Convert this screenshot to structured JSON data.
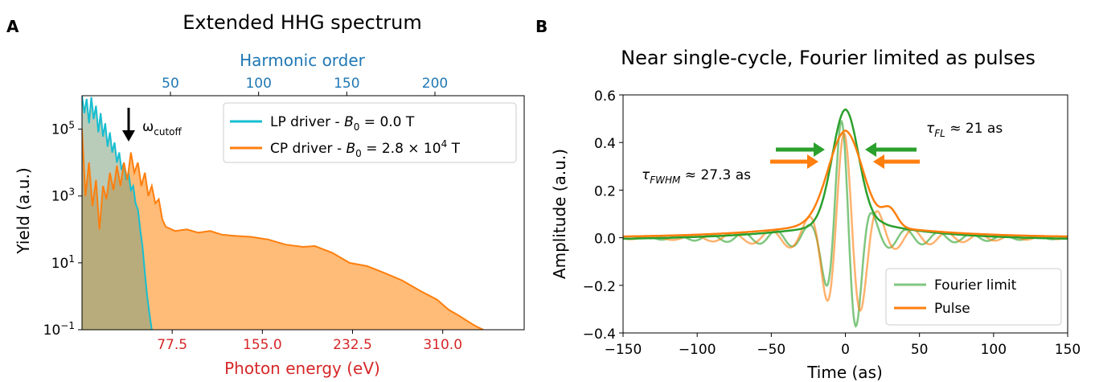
{
  "panel_a_label": "A",
  "panel_b_label": "B",
  "colors": {
    "lp": "#17becf",
    "cp": "#ff7f0e",
    "cp_fill": "#ffbb78",
    "green": "#2ca02c",
    "harm_axis": "#1f77b4",
    "energy_axis": "#d62728"
  },
  "chart_data": [
    {
      "type": "area",
      "title": "Extended HHG spectrum",
      "xlabel": "Photon energy (eV)",
      "ylabel": "Yield (a.u.)",
      "x_ticks": [
        77.5,
        155.0,
        232.5,
        310.0
      ],
      "x_tick_labels": [
        "77.5",
        "155.0",
        "232.5",
        "310.0"
      ],
      "xlim": [
        0,
        380
      ],
      "y_scale": "log",
      "ylim": [
        0.1,
        1000000
      ],
      "y_ticks": [
        {
          "value": 0.1,
          "base": "10",
          "exp": "−1"
        },
        {
          "value": 10,
          "base": "10",
          "exp": "1"
        },
        {
          "value": 1000,
          "base": "10",
          "exp": "3"
        },
        {
          "value": 100000,
          "base": "10",
          "exp": "5"
        }
      ],
      "top_axis": {
        "label": "Harmonic order",
        "ticks": [
          50,
          100,
          150,
          200
        ],
        "tick_labels": [
          "50",
          "100",
          "150",
          "200"
        ]
      },
      "annotation": {
        "text": "ω",
        "sub": "cutoff",
        "x": 38
      },
      "series": [
        {
          "name_prefix": "LP driver - ",
          "name_var": "B",
          "name_sub": "0",
          "name_suffix": " = 0.0 T",
          "x": [
            0,
            2,
            4,
            6,
            8,
            10,
            12,
            14,
            16,
            18,
            20,
            22,
            24,
            26,
            28,
            30,
            32,
            34,
            36,
            38,
            40,
            42,
            44,
            46,
            48,
            50,
            52,
            54,
            56,
            58,
            60
          ],
          "y": [
            1000000,
            300000,
            800000,
            150000,
            900000,
            200000,
            500000,
            80000,
            300000,
            60000,
            150000,
            30000,
            80000,
            20000,
            40000,
            10000,
            20000,
            6000,
            10000,
            3000,
            5000,
            1500,
            2000,
            600,
            400,
            100,
            30,
            5,
            1,
            0.3,
            0.1
          ]
        },
        {
          "name_prefix": "CP driver - ",
          "name_var": "B",
          "name_sub": "0",
          "name_suffix": " = 2.8 × 10",
          "name_exp": "4",
          "name_tail": " T",
          "x": [
            0,
            3,
            6,
            9,
            12,
            15,
            18,
            21,
            24,
            27,
            30,
            33,
            36,
            39,
            42,
            45,
            48,
            51,
            54,
            57,
            60,
            63,
            66,
            69,
            72,
            80,
            90,
            100,
            110,
            120,
            130,
            145,
            160,
            175,
            190,
            200,
            215,
            230,
            245,
            260,
            275,
            290,
            305,
            315,
            325,
            335,
            340,
            345
          ],
          "y": [
            100000,
            1000,
            10000,
            500,
            3000,
            100,
            2000,
            800,
            5000,
            1500,
            8000,
            2000,
            10000,
            3000,
            20000,
            5000,
            10000,
            2000,
            5000,
            1000,
            2000,
            600,
            800,
            200,
            120,
            90,
            100,
            80,
            90,
            70,
            65,
            60,
            50,
            35,
            30,
            32,
            20,
            10,
            8,
            5,
            3,
            1.5,
            0.8,
            0.4,
            0.25,
            0.15,
            0.12,
            0.1
          ]
        }
      ]
    },
    {
      "type": "line",
      "title": "Near single-cycle, Fourier limited as pulses",
      "xlabel": "Time (as)",
      "ylabel": "Amplitude (a.u.)",
      "xlim": [
        -150,
        150
      ],
      "ylim": [
        -0.4,
        0.6
      ],
      "x_ticks": [
        -150,
        -100,
        -50,
        0,
        50,
        100,
        150
      ],
      "x_tick_labels": [
        "−150",
        "−100",
        "−50",
        "0",
        "50",
        "100",
        "150"
      ],
      "y_ticks": [
        -0.4,
        -0.2,
        0.0,
        0.2,
        0.4,
        0.6
      ],
      "y_tick_labels": [
        "−0.4",
        "−0.2",
        "0.0",
        "0.2",
        "0.4",
        "0.6"
      ],
      "annotations": [
        {
          "var": "τ",
          "sub": "FL",
          "text": " ≈ 21 as"
        },
        {
          "var": "τ",
          "sub": "FWHM",
          "text": " ≈ 27.3 as"
        }
      ],
      "series": [
        {
          "name": "Fourier limit",
          "envelope_peak": 0.54,
          "envelope_fwhm": 21
        },
        {
          "name": "Pulse",
          "envelope_peak": 0.45,
          "envelope_fwhm": 27.3
        }
      ]
    }
  ]
}
